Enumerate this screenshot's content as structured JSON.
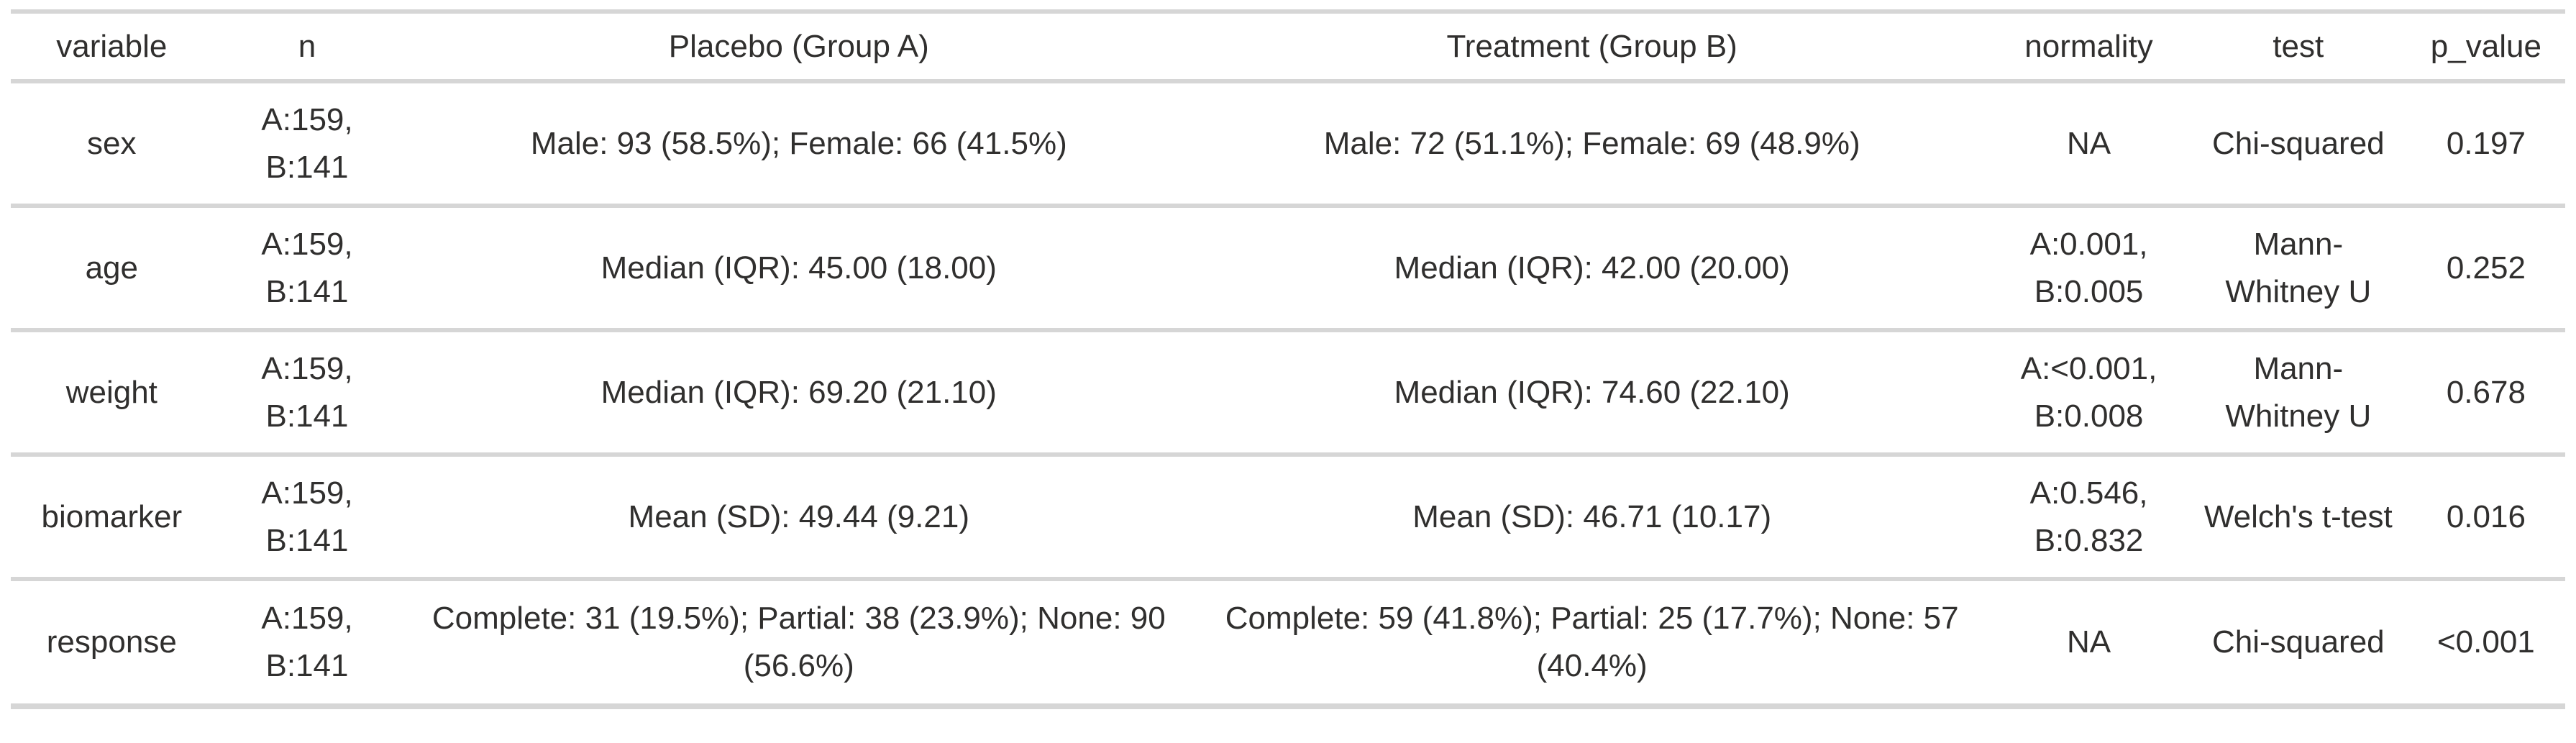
{
  "colors": {
    "text": "#302f2e",
    "divider": "#d6d6d6",
    "background": "#ffffff"
  },
  "chart_data": {
    "type": "table",
    "columns": [
      "variable",
      "n",
      "Placebo (Group A)",
      "Treatment (Group B)",
      "normality",
      "test",
      "p_value"
    ],
    "rows": [
      [
        "sex",
        "A:159, B:141",
        "Male: 93 (58.5%); Female: 66 (41.5%)",
        "Male: 72 (51.1%); Female: 69 (48.9%)",
        "NA",
        "Chi-squared",
        "0.197"
      ],
      [
        "age",
        "A:159, B:141",
        "Median (IQR): 45.00 (18.00)",
        "Median (IQR): 42.00 (20.00)",
        "A:0.001, B:0.005",
        "Mann-Whitney U",
        "0.252"
      ],
      [
        "weight",
        "A:159, B:141",
        "Median (IQR): 69.20 (21.10)",
        "Median (IQR): 74.60 (22.10)",
        "A:<0.001, B:0.008",
        "Mann-Whitney U",
        "0.678"
      ],
      [
        "biomarker",
        "A:159, B:141",
        "Mean (SD): 49.44 (9.21)",
        "Mean (SD): 46.71 (10.17)",
        "A:0.546, B:0.832",
        "Welch's t-test",
        "0.016"
      ],
      [
        "response",
        "A:159, B:141",
        "Complete: 31 (19.5%); Partial: 38 (23.9%); None: 90 (56.6%)",
        "Complete: 59 (41.8%); Partial: 25 (17.7%); None: 57 (40.4%)",
        "NA",
        "Chi-squared",
        "<0.001"
      ]
    ]
  }
}
